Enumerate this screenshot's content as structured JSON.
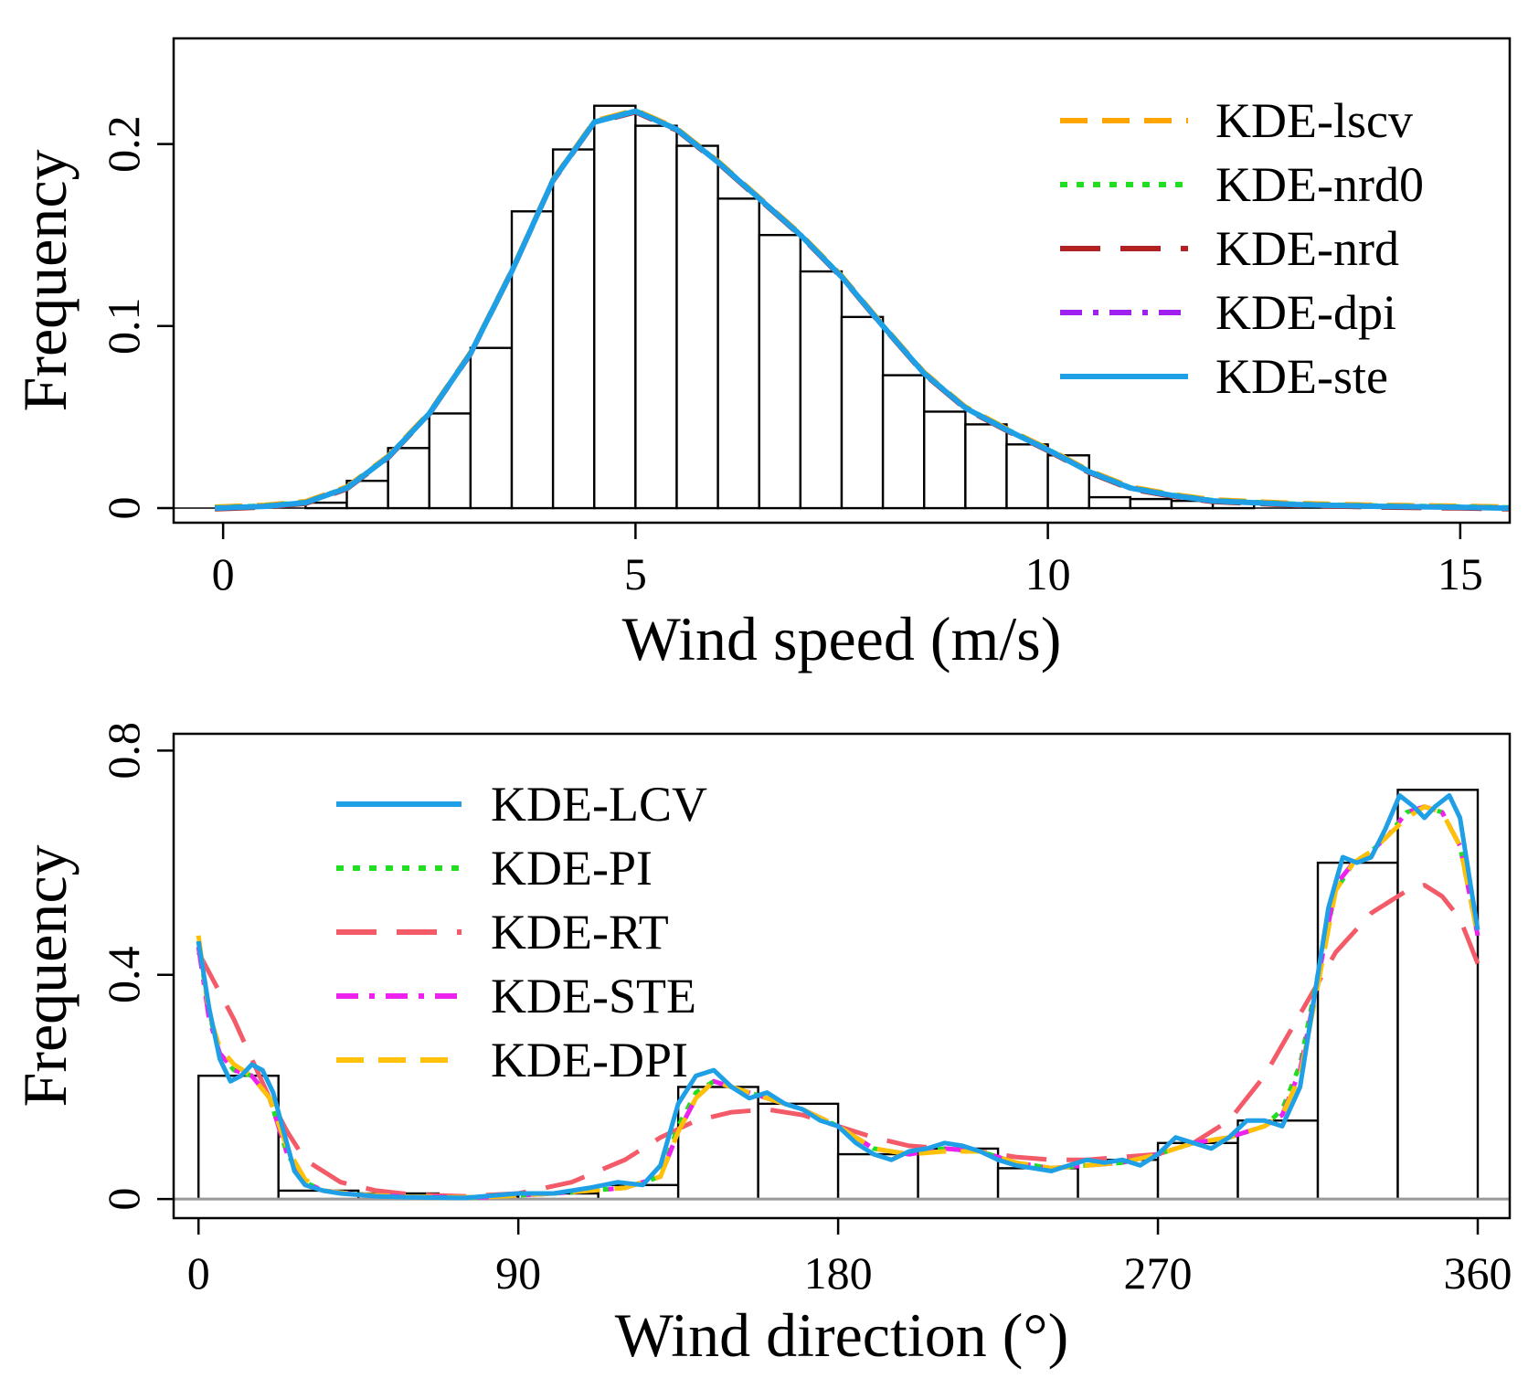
{
  "chart_data": [
    {
      "type": "histogram",
      "title": "",
      "xlabel": "Wind speed (m/s)",
      "ylabel": "Frequency",
      "xlim": [
        -0.6,
        15.6
      ],
      "ylim": [
        -0.008,
        0.258
      ],
      "x_ticks": [
        0,
        5,
        10,
        15
      ],
      "y_ticks": [
        0,
        0.1,
        0.2
      ],
      "y_tick_labels": [
        "0",
        "0.1",
        "0.2"
      ],
      "grid": false,
      "legend_position": "top-right",
      "bins": [
        {
          "x0": 1.0,
          "x1": 1.5,
          "value": 0.003
        },
        {
          "x0": 1.5,
          "x1": 2.0,
          "value": 0.015
        },
        {
          "x0": 2.0,
          "x1": 2.5,
          "value": 0.033
        },
        {
          "x0": 2.5,
          "x1": 3.0,
          "value": 0.052
        },
        {
          "x0": 3.0,
          "x1": 3.5,
          "value": 0.088
        },
        {
          "x0": 3.5,
          "x1": 4.0,
          "value": 0.163
        },
        {
          "x0": 4.0,
          "x1": 4.5,
          "value": 0.197
        },
        {
          "x0": 4.5,
          "x1": 5.0,
          "value": 0.221
        },
        {
          "x0": 5.0,
          "x1": 5.5,
          "value": 0.21
        },
        {
          "x0": 5.5,
          "x1": 6.0,
          "value": 0.199
        },
        {
          "x0": 6.0,
          "x1": 6.5,
          "value": 0.17
        },
        {
          "x0": 6.5,
          "x1": 7.0,
          "value": 0.15
        },
        {
          "x0": 7.0,
          "x1": 7.5,
          "value": 0.13
        },
        {
          "x0": 7.5,
          "x1": 8.0,
          "value": 0.105
        },
        {
          "x0": 8.0,
          "x1": 8.5,
          "value": 0.073
        },
        {
          "x0": 8.5,
          "x1": 9.0,
          "value": 0.053
        },
        {
          "x0": 9.0,
          "x1": 9.5,
          "value": 0.046
        },
        {
          "x0": 9.5,
          "x1": 10.0,
          "value": 0.035
        },
        {
          "x0": 10.0,
          "x1": 10.5,
          "value": 0.029
        },
        {
          "x0": 10.5,
          "x1": 11.0,
          "value": 0.006
        },
        {
          "x0": 11.0,
          "x1": 11.5,
          "value": 0.005
        },
        {
          "x0": 11.5,
          "x1": 12.0,
          "value": 0.004
        },
        {
          "x0": 12.0,
          "x1": 12.5,
          "value": 0.003
        }
      ],
      "series": [
        {
          "name": "KDE-lscv",
          "color": "#FFA500",
          "dash": "dashed"
        },
        {
          "name": "KDE-nrd0",
          "color": "#22DD22",
          "dash": "dotted"
        },
        {
          "name": "KDE-nrd",
          "color": "#B22222",
          "dash": "longdash"
        },
        {
          "name": "KDE-dpi",
          "color": "#A020F0",
          "dash": "dotdash"
        },
        {
          "name": "KDE-ste",
          "color": "#1E9FE6",
          "dash": "solid"
        }
      ],
      "curve": {
        "x": [
          -0.1,
          0.5,
          1.0,
          1.5,
          2.0,
          2.5,
          3.0,
          3.5,
          4.0,
          4.5,
          5.0,
          5.5,
          6.0,
          6.5,
          7.0,
          7.5,
          8.0,
          8.5,
          9.0,
          9.5,
          10.0,
          10.5,
          11.0,
          11.5,
          12.0,
          12.5,
          13.0,
          14.0,
          15.0,
          15.6
        ],
        "y": [
          0.0,
          0.001,
          0.003,
          0.011,
          0.028,
          0.052,
          0.085,
          0.13,
          0.18,
          0.212,
          0.218,
          0.208,
          0.19,
          0.17,
          0.15,
          0.127,
          0.1,
          0.074,
          0.055,
          0.043,
          0.032,
          0.02,
          0.011,
          0.007,
          0.004,
          0.003,
          0.002,
          0.001,
          0.0005,
          0.0
        ]
      }
    },
    {
      "type": "histogram",
      "title": "",
      "xlabel": "Wind direction (°)",
      "ylabel": "Frequency",
      "xlim": [
        -7,
        369
      ],
      "ylim": [
        -0.034,
        0.83
      ],
      "x_ticks": [
        0,
        90,
        180,
        270,
        360
      ],
      "y_ticks": [
        0,
        0.4,
        0.8
      ],
      "y_tick_labels": [
        "0",
        "0.4",
        "0.8"
      ],
      "grid": false,
      "legend_position": "top-left",
      "bins": [
        {
          "x0": 0,
          "x1": 22.5,
          "value": 0.22
        },
        {
          "x0": 22.5,
          "x1": 45,
          "value": 0.015
        },
        {
          "x0": 45,
          "x1": 67.5,
          "value": 0.01
        },
        {
          "x0": 67.5,
          "x1": 90,
          "value": 0.005
        },
        {
          "x0": 90,
          "x1": 112.5,
          "value": 0.01
        },
        {
          "x0": 112.5,
          "x1": 135,
          "value": 0.025
        },
        {
          "x0": 135,
          "x1": 157.5,
          "value": 0.2
        },
        {
          "x0": 157.5,
          "x1": 180,
          "value": 0.17
        },
        {
          "x0": 180,
          "x1": 202.5,
          "value": 0.08
        },
        {
          "x0": 202.5,
          "x1": 225,
          "value": 0.09
        },
        {
          "x0": 225,
          "x1": 247.5,
          "value": 0.055
        },
        {
          "x0": 247.5,
          "x1": 270,
          "value": 0.07
        },
        {
          "x0": 270,
          "x1": 292.5,
          "value": 0.1
        },
        {
          "x0": 292.5,
          "x1": 315,
          "value": 0.14
        },
        {
          "x0": 315,
          "x1": 337.5,
          "value": 0.6
        },
        {
          "x0": 337.5,
          "x1": 360,
          "value": 0.73
        }
      ],
      "series": [
        {
          "name": "KDE-LCV",
          "color": "#1E9FE6",
          "dash": "solid",
          "x": [
            0,
            3,
            6,
            9,
            12,
            15,
            18,
            21,
            24,
            27,
            30,
            35,
            40,
            50,
            60,
            75,
            90,
            100,
            110,
            118,
            125,
            130,
            135,
            140,
            145,
            150,
            155,
            160,
            165,
            170,
            175,
            180,
            185,
            190,
            195,
            200,
            205,
            210,
            215,
            220,
            225,
            230,
            235,
            240,
            245,
            250,
            255,
            260,
            265,
            270,
            275,
            280,
            285,
            290,
            295,
            300,
            305,
            310,
            315,
            318,
            322,
            326,
            330,
            334,
            338,
            342,
            345,
            348,
            352,
            355,
            358,
            360
          ],
          "y": [
            0.46,
            0.34,
            0.25,
            0.21,
            0.22,
            0.24,
            0.23,
            0.19,
            0.12,
            0.05,
            0.025,
            0.015,
            0.01,
            0.005,
            0.003,
            0.002,
            0.01,
            0.01,
            0.02,
            0.03,
            0.025,
            0.06,
            0.17,
            0.22,
            0.23,
            0.2,
            0.18,
            0.19,
            0.17,
            0.16,
            0.14,
            0.13,
            0.1,
            0.08,
            0.07,
            0.085,
            0.09,
            0.1,
            0.095,
            0.085,
            0.07,
            0.06,
            0.055,
            0.05,
            0.06,
            0.07,
            0.065,
            0.07,
            0.06,
            0.08,
            0.11,
            0.1,
            0.09,
            0.11,
            0.14,
            0.14,
            0.13,
            0.2,
            0.4,
            0.52,
            0.61,
            0.6,
            0.61,
            0.66,
            0.72,
            0.7,
            0.68,
            0.7,
            0.72,
            0.68,
            0.56,
            0.48
          ]
        },
        {
          "name": "KDE-PI",
          "color": "#22DD22",
          "dash": "dotted",
          "x": [
            0,
            3,
            6,
            10,
            15,
            20,
            25,
            30,
            35,
            45,
            60,
            80,
            100,
            120,
            130,
            135,
            140,
            145,
            150,
            160,
            170,
            180,
            190,
            200,
            210,
            220,
            230,
            240,
            250,
            260,
            270,
            280,
            290,
            300,
            305,
            310,
            315,
            320,
            325,
            330,
            335,
            340,
            345,
            350,
            355,
            360
          ],
          "y": [
            0.46,
            0.33,
            0.26,
            0.23,
            0.22,
            0.18,
            0.08,
            0.03,
            0.015,
            0.008,
            0.004,
            0.003,
            0.01,
            0.02,
            0.04,
            0.13,
            0.19,
            0.21,
            0.2,
            0.18,
            0.16,
            0.13,
            0.09,
            0.08,
            0.09,
            0.085,
            0.065,
            0.055,
            0.06,
            0.065,
            0.08,
            0.1,
            0.11,
            0.13,
            0.16,
            0.24,
            0.4,
            0.55,
            0.6,
            0.62,
            0.65,
            0.69,
            0.7,
            0.69,
            0.63,
            0.47
          ]
        },
        {
          "name": "KDE-RT",
          "color": "#F45B69",
          "dash": "longdash",
          "x": [
            0,
            5,
            10,
            15,
            20,
            25,
            30,
            40,
            50,
            60,
            75,
            90,
            105,
            120,
            130,
            140,
            150,
            160,
            170,
            180,
            190,
            200,
            210,
            220,
            230,
            240,
            250,
            260,
            270,
            280,
            290,
            300,
            310,
            320,
            330,
            340,
            345,
            350,
            355,
            360
          ],
          "y": [
            0.44,
            0.38,
            0.32,
            0.25,
            0.18,
            0.12,
            0.07,
            0.03,
            0.015,
            0.008,
            0.005,
            0.01,
            0.03,
            0.07,
            0.11,
            0.14,
            0.155,
            0.16,
            0.15,
            0.13,
            0.11,
            0.095,
            0.09,
            0.085,
            0.075,
            0.07,
            0.07,
            0.075,
            0.08,
            0.1,
            0.14,
            0.22,
            0.33,
            0.44,
            0.51,
            0.55,
            0.56,
            0.54,
            0.5,
            0.42
          ]
        },
        {
          "name": "KDE-STE",
          "color": "#EE22EE",
          "dash": "dotdash",
          "x": [
            0,
            3,
            6,
            10,
            15,
            20,
            25,
            30,
            35,
            45,
            60,
            80,
            100,
            120,
            130,
            135,
            140,
            145,
            150,
            160,
            170,
            180,
            190,
            200,
            210,
            220,
            230,
            240,
            250,
            260,
            270,
            280,
            290,
            300,
            305,
            310,
            315,
            320,
            325,
            330,
            335,
            340,
            345,
            350,
            355,
            360
          ],
          "y": [
            0.45,
            0.32,
            0.26,
            0.23,
            0.22,
            0.18,
            0.08,
            0.03,
            0.015,
            0.008,
            0.004,
            0.003,
            0.01,
            0.02,
            0.04,
            0.12,
            0.18,
            0.21,
            0.2,
            0.18,
            0.16,
            0.13,
            0.09,
            0.08,
            0.09,
            0.085,
            0.065,
            0.055,
            0.06,
            0.065,
            0.08,
            0.1,
            0.11,
            0.13,
            0.15,
            0.23,
            0.39,
            0.56,
            0.6,
            0.62,
            0.65,
            0.69,
            0.7,
            0.69,
            0.63,
            0.47
          ]
        },
        {
          "name": "KDE-DPI",
          "color": "#FFC107",
          "dash": "dashed",
          "x": [
            0,
            3,
            6,
            10,
            15,
            20,
            25,
            30,
            35,
            45,
            60,
            80,
            100,
            120,
            130,
            135,
            140,
            145,
            150,
            160,
            170,
            180,
            190,
            200,
            210,
            220,
            230,
            240,
            250,
            260,
            270,
            280,
            290,
            300,
            305,
            310,
            315,
            320,
            325,
            330,
            335,
            340,
            345,
            350,
            355,
            360
          ],
          "y": [
            0.47,
            0.33,
            0.27,
            0.24,
            0.22,
            0.18,
            0.09,
            0.035,
            0.015,
            0.008,
            0.004,
            0.003,
            0.01,
            0.02,
            0.04,
            0.12,
            0.18,
            0.21,
            0.2,
            0.18,
            0.16,
            0.13,
            0.09,
            0.08,
            0.085,
            0.085,
            0.065,
            0.055,
            0.06,
            0.065,
            0.08,
            0.1,
            0.11,
            0.13,
            0.15,
            0.22,
            0.38,
            0.55,
            0.6,
            0.62,
            0.65,
            0.68,
            0.7,
            0.69,
            0.63,
            0.47
          ]
        }
      ]
    }
  ]
}
